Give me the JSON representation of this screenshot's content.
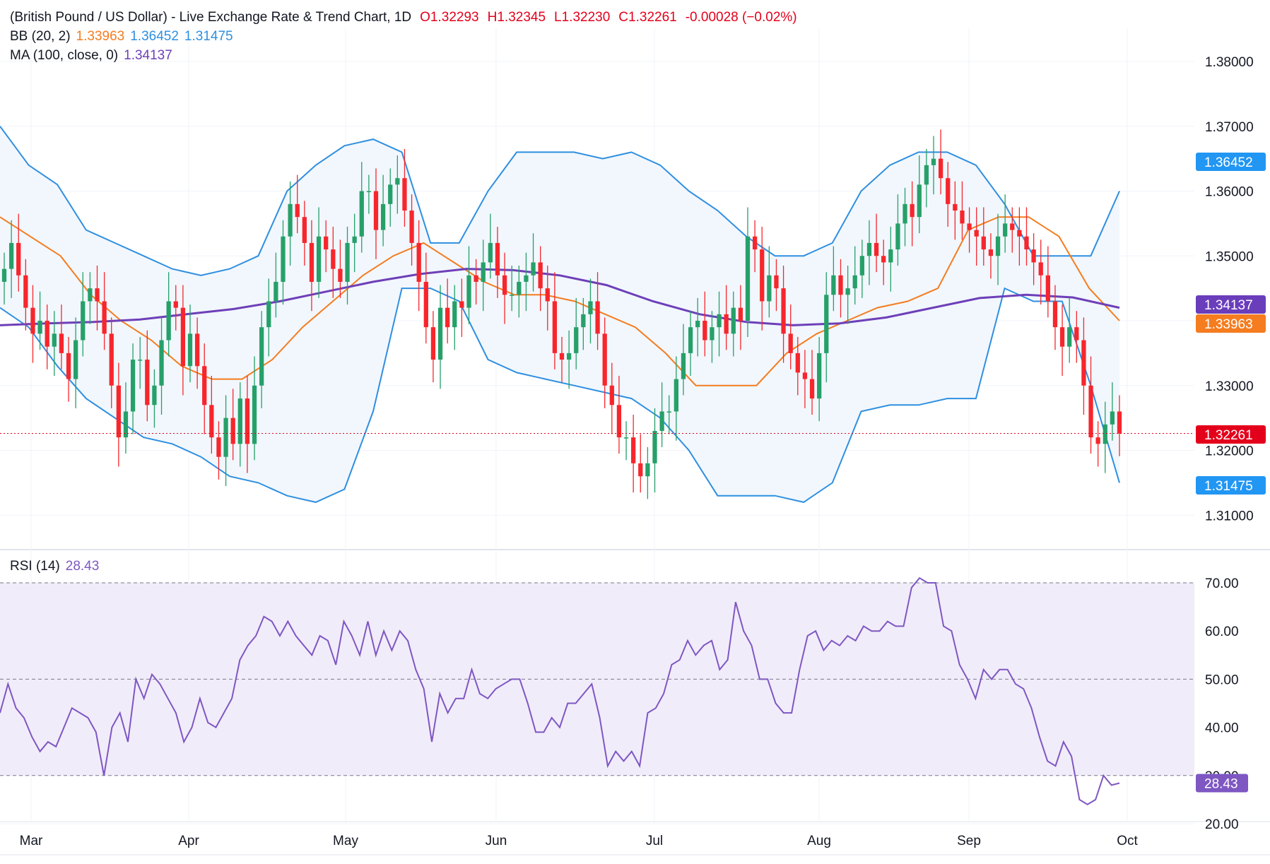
{
  "header": {
    "title": "(British Pound / US Dollar) - Live Exchange Rate & Trend Chart, 1D",
    "open_label": "O",
    "open": "1.32293",
    "high_label": "H",
    "high": "1.32345",
    "low_label": "L",
    "low": "1.32230",
    "close_label": "C",
    "close": "1.32261",
    "change": "-0.00028 (−0.02%)"
  },
  "indicators": {
    "bb": {
      "label": "BB (20, 2)",
      "basis": "1.33963",
      "upper": "1.36452",
      "lower": "1.31475"
    },
    "ma": {
      "label": "MA (100, close, 0)",
      "value": "1.34137"
    },
    "rsi": {
      "label": "RSI (14)",
      "value": "28.43"
    }
  },
  "colors": {
    "up": "#26a069",
    "down": "#f7262c",
    "upper_band": "#2f8fe0",
    "lower_band": "#2f8fe0",
    "basis": "#f57c1f",
    "ma": "#6e3fb8",
    "rsi": "#7e57c2",
    "band_fill": "#f1f7fd",
    "rsi_fill": "#f1ecfa",
    "tag_upper": "#2196f3",
    "tag_ma": "#6a3dbb",
    "tag_basis": "#f57c1f",
    "tag_close": "#e3001b",
    "tag_rsi": "#7e57c2"
  },
  "chart_data": [
    {
      "type": "candlestick",
      "title": "(British Pound / US Dollar) - Live Exchange Rate & Trend Chart, 1D",
      "y_ticks": [
        "1.31000",
        "1.32000",
        "1.33000",
        "1.34000",
        "1.35000",
        "1.36000",
        "1.37000",
        "1.38000"
      ],
      "ylim": [
        1.3055,
        1.3843
      ],
      "x_ticks": [
        "Mar",
        "Apr",
        "May",
        "Jun",
        "Jul",
        "Aug",
        "Sep",
        "Oct"
      ],
      "last_close": 1.32261,
      "price_tags": {
        "upper": "1.36452",
        "ma": "1.34137",
        "basis": "1.33963",
        "close": "1.32261",
        "lower": "1.31475"
      },
      "ohlc_closes": [
        1.348,
        1.352,
        1.347,
        1.342,
        1.338,
        1.34,
        1.336,
        1.338,
        1.335,
        1.331,
        1.337,
        1.343,
        1.345,
        1.343,
        1.338,
        1.33,
        1.322,
        1.326,
        1.334,
        1.334,
        1.327,
        1.33,
        1.337,
        1.343,
        1.342,
        1.333,
        1.338,
        1.333,
        1.327,
        1.322,
        1.319,
        1.325,
        1.321,
        1.328,
        1.321,
        1.33,
        1.339,
        1.343,
        1.346,
        1.353,
        1.358,
        1.356,
        1.352,
        1.346,
        1.353,
        1.351,
        1.348,
        1.346,
        1.352,
        1.353,
        1.36,
        1.36,
        1.354,
        1.358,
        1.361,
        1.362,
        1.357,
        1.352,
        1.346,
        1.339,
        1.334,
        1.342,
        1.339,
        1.343,
        1.342,
        1.347,
        1.346,
        1.349,
        1.352,
        1.347,
        1.344,
        1.344,
        1.346,
        1.347,
        1.349,
        1.345,
        1.343,
        1.335,
        1.334,
        1.335,
        1.339,
        1.341,
        1.343,
        1.338,
        1.33,
        1.327,
        1.322,
        1.322,
        1.318,
        1.316,
        1.318,
        1.323,
        1.326,
        1.326,
        1.331,
        1.335,
        1.339,
        1.34,
        1.337,
        1.339,
        1.341,
        1.338,
        1.342,
        1.34,
        1.353,
        1.351,
        1.343,
        1.347,
        1.345,
        1.338,
        1.335,
        1.332,
        1.331,
        1.328,
        1.335,
        1.344,
        1.347,
        1.344,
        1.345,
        1.347,
        1.35,
        1.352,
        1.35,
        1.349,
        1.351,
        1.355,
        1.358,
        1.356,
        1.361,
        1.364,
        1.365,
        1.362,
        1.358,
        1.357,
        1.355,
        1.354,
        1.353,
        1.351,
        1.35,
        1.353,
        1.355,
        1.354,
        1.353,
        1.351,
        1.349,
        1.347,
        1.343,
        1.339,
        1.336,
        1.339,
        1.337,
        1.33,
        1.322,
        1.321,
        1.324,
        1.326,
        1.3226
      ],
      "bb_upper": [
        1.37,
        1.364,
        1.361,
        1.354,
        1.352,
        1.35,
        1.348,
        1.347,
        1.348,
        1.35,
        1.36,
        1.364,
        1.367,
        1.368,
        1.366,
        1.352,
        1.352,
        1.36,
        1.366,
        1.366,
        1.366,
        1.365,
        1.366,
        1.364,
        1.36,
        1.357,
        1.353,
        1.35,
        1.35,
        1.352,
        1.36,
        1.364,
        1.366,
        1.366,
        1.364,
        1.358,
        1.35,
        1.35,
        1.35,
        1.36
      ],
      "bb_lower": [
        1.342,
        1.339,
        1.333,
        1.328,
        1.325,
        1.322,
        1.321,
        1.319,
        1.316,
        1.315,
        1.313,
        1.312,
        1.314,
        1.326,
        1.345,
        1.345,
        1.343,
        1.334,
        1.332,
        1.331,
        1.33,
        1.329,
        1.328,
        1.325,
        1.32,
        1.313,
        1.313,
        1.313,
        1.312,
        1.315,
        1.326,
        1.327,
        1.327,
        1.328,
        1.328,
        1.345,
        1.343,
        1.343,
        1.33,
        1.315
      ],
      "bb_basis": [
        1.356,
        1.353,
        1.35,
        1.344,
        1.34,
        1.337,
        1.333,
        1.331,
        1.331,
        1.334,
        1.339,
        1.343,
        1.347,
        1.35,
        1.352,
        1.349,
        1.346,
        1.344,
        1.344,
        1.343,
        1.341,
        1.339,
        1.335,
        1.33,
        1.33,
        1.33,
        1.335,
        1.338,
        1.34,
        1.342,
        1.343,
        1.345,
        1.354,
        1.356,
        1.356,
        1.353,
        1.345,
        1.34
      ],
      "ma_100": [
        1.3393,
        1.3396,
        1.3398,
        1.3402,
        1.341,
        1.3418,
        1.343,
        1.3445,
        1.346,
        1.3472,
        1.348,
        1.3478,
        1.347,
        1.3455,
        1.343,
        1.341,
        1.3398,
        1.3393,
        1.3396,
        1.3405,
        1.342,
        1.3435,
        1.344,
        1.3436,
        1.342
      ]
    },
    {
      "type": "line",
      "title": "RSI (14)",
      "y_ticks": [
        "20.00",
        "30.00",
        "40.00",
        "50.00",
        "60.00",
        "70.00"
      ],
      "ylim": [
        20,
        71.5
      ],
      "bands": [
        30,
        50,
        70
      ],
      "values": [
        43,
        49,
        44,
        42,
        38,
        35,
        37,
        36,
        40,
        44,
        43,
        42,
        39,
        30,
        40,
        43,
        37,
        50,
        46,
        51,
        49,
        46,
        43,
        37,
        40,
        46,
        41,
        40,
        43,
        46,
        54,
        57,
        59,
        63,
        62,
        59,
        62,
        59,
        57,
        55,
        59,
        58,
        53,
        62,
        59,
        55,
        62,
        55,
        60,
        56,
        60,
        58,
        52,
        48,
        37,
        47,
        43,
        46,
        46,
        52,
        47,
        46,
        48,
        49,
        50,
        50,
        45,
        39,
        39,
        42,
        40,
        45,
        45,
        47,
        49,
        42,
        32,
        35,
        33,
        35,
        32,
        43,
        44,
        47,
        53,
        54,
        58,
        55,
        57,
        58,
        52,
        54,
        66,
        60,
        57,
        50,
        50,
        45,
        43,
        43,
        52,
        59,
        60,
        56,
        58,
        57,
        59,
        58,
        61,
        60,
        60,
        62,
        61,
        61,
        69,
        71,
        70,
        70,
        61,
        60,
        53,
        50,
        46,
        52,
        50,
        52,
        52,
        49,
        48,
        44,
        38,
        33,
        32,
        37,
        34,
        25,
        24,
        25,
        30,
        28,
        28.43
      ]
    }
  ]
}
